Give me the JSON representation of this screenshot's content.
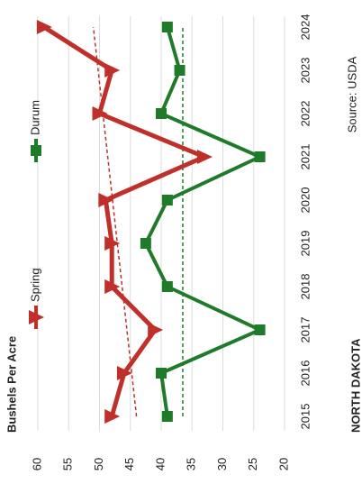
{
  "chart_data": {
    "type": "line",
    "title": "Bushels Per Acre",
    "source": "Source: USDA",
    "logo": "NORTH DAKOTA",
    "categories": [
      "2015",
      "2016",
      "2017",
      "2018",
      "2019",
      "2020",
      "2021",
      "2022",
      "2023",
      "2024"
    ],
    "series": [
      {
        "name": "Spring",
        "color": "#c0302a",
        "marker": "triangle",
        "values": [
          48,
          46,
          41,
          48,
          48,
          49,
          33,
          50,
          48,
          59
        ]
      },
      {
        "name": "Durum",
        "color": "#1f7a2a",
        "marker": "square",
        "values": [
          39,
          40,
          24,
          39,
          42.5,
          39,
          24,
          40,
          37,
          39
        ]
      }
    ],
    "trendlines": [
      {
        "color": "#c0302a",
        "values": [
          44,
          51
        ]
      },
      {
        "color": "#1f7a2a",
        "values": [
          36.5,
          36.5
        ]
      }
    ],
    "ylim": [
      20,
      60
    ],
    "yticks": [
      60,
      55,
      50,
      45,
      40,
      35,
      30,
      25,
      20
    ],
    "grid": true
  }
}
